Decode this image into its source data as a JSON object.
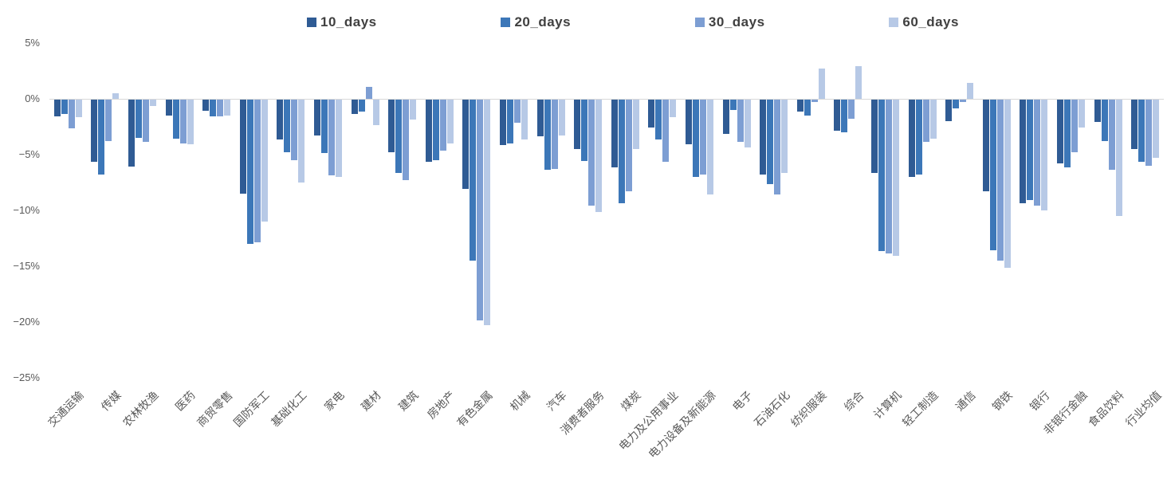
{
  "legend": {
    "items": [
      {
        "label": "10_days",
        "color": "#2F5B94"
      },
      {
        "label": "20_days",
        "color": "#3C77B8"
      },
      {
        "label": "30_days",
        "color": "#7D9ED3"
      },
      {
        "label": "60_days",
        "color": "#B7C9E6"
      }
    ]
  },
  "y_axis": {
    "ticks": [
      {
        "label": "5%",
        "value": 5
      },
      {
        "label": "0%",
        "value": 0
      },
      {
        "label": "−5%",
        "value": -5
      },
      {
        "label": "−10%",
        "value": -10
      },
      {
        "label": "−15%",
        "value": -15
      },
      {
        "label": "−20%",
        "value": -20
      },
      {
        "label": "−25%",
        "value": -25
      }
    ]
  },
  "chart_data": {
    "type": "bar",
    "title": "",
    "xlabel": "",
    "ylabel": "",
    "ylim": [
      -25,
      5
    ],
    "grid": false,
    "legend_position": "top",
    "categories": [
      "交通运输",
      "传媒",
      "农林牧渔",
      "医药",
      "商贸零售",
      "国防军工",
      "基础化工",
      "家电",
      "建材",
      "建筑",
      "房地产",
      "有色金属",
      "机械",
      "汽车",
      "消费者服务",
      "煤炭",
      "电力及公用事业",
      "电力设备及新能源",
      "电子",
      "石油石化",
      "纺织服装",
      "综合",
      "计算机",
      "轻工制造",
      "通信",
      "钢铁",
      "银行",
      "非银行金融",
      "食品饮料",
      "行业均值"
    ],
    "series": [
      {
        "name": "10_days",
        "color": "#2F5B94",
        "values": [
          -1.5,
          -5.6,
          -6.0,
          -1.4,
          -1.0,
          -8.4,
          -3.6,
          -3.2,
          -1.3,
          -4.7,
          -5.6,
          -8.0,
          -4.1,
          -3.3,
          -4.4,
          -6.1,
          -2.5,
          -4.0,
          -3.1,
          -6.7,
          -1.1,
          -2.8,
          -6.6,
          -6.9,
          -1.9,
          -8.2,
          -9.3,
          -5.7,
          -2.0,
          -4.4
        ]
      },
      {
        "name": "20_days",
        "color": "#3C77B8",
        "values": [
          -1.3,
          -6.7,
          -3.4,
          -3.5,
          -1.5,
          -12.9,
          -4.7,
          -4.8,
          -1.1,
          -6.6,
          -5.4,
          -14.4,
          -3.9,
          -6.3,
          -5.5,
          -9.3,
          -3.6,
          -6.9,
          -0.9,
          -7.6,
          -1.4,
          -2.9,
          -13.6,
          -6.7,
          -0.8,
          -13.5,
          -9.0,
          -6.1,
          -3.7,
          -5.6
        ]
      },
      {
        "name": "30_days",
        "color": "#7D9ED3",
        "values": [
          -2.6,
          -3.7,
          -3.8,
          -3.9,
          -1.5,
          -12.8,
          -5.4,
          -6.8,
          1.1,
          -7.2,
          -4.6,
          -19.8,
          -2.1,
          -6.2,
          -9.5,
          -8.2,
          -5.6,
          -6.7,
          -3.8,
          -8.5,
          -0.2,
          -1.7,
          -13.8,
          -3.8,
          -0.2,
          -14.4,
          -9.5,
          -4.7,
          -6.3,
          -5.9
        ]
      },
      {
        "name": "60_days",
        "color": "#B7C9E6",
        "values": [
          -1.6,
          0.5,
          -0.6,
          -4.0,
          -1.4,
          -10.9,
          -7.4,
          -6.9,
          -2.3,
          -1.8,
          -3.9,
          -20.2,
          -3.6,
          -3.2,
          -10.1,
          -4.4,
          -1.6,
          -8.5,
          -4.3,
          -6.6,
          2.7,
          2.9,
          -14.0,
          -3.5,
          1.4,
          -15.1,
          -9.9,
          -2.5,
          -10.4,
          -5.2
        ]
      }
    ]
  }
}
